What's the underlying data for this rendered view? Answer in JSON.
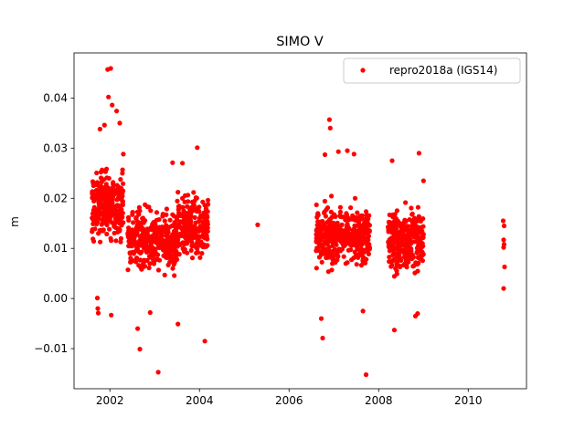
{
  "chart_data": {
    "type": "scatter",
    "title": "SIMO V",
    "xlabel": "",
    "ylabel": "m",
    "xlim": [
      2001.2,
      2011.3
    ],
    "ylim": [
      -0.018,
      0.049
    ],
    "x_ticks": [
      2002,
      2004,
      2006,
      2008,
      2010
    ],
    "x_tick_labels": [
      "2002",
      "2004",
      "2006",
      "2008",
      "2010"
    ],
    "y_ticks": [
      -0.01,
      0.0,
      0.01,
      0.02,
      0.03,
      0.04
    ],
    "y_tick_labels": [
      "−0.01",
      "0.00",
      "0.01",
      "0.02",
      "0.03",
      "0.04"
    ],
    "grid": false,
    "legend_position": "top-right",
    "series": [
      {
        "name": "repro2018a (IGS14)",
        "color": "#ff0000",
        "marker": "circle",
        "clusters": [
          {
            "x_range": [
              2001.6,
              2002.3
            ],
            "y_center": 0.0185,
            "y_spread": 0.0075,
            "count": 280
          },
          {
            "x_range": [
              2002.4,
              2003.5
            ],
            "y_center": 0.0115,
            "y_spread": 0.0065,
            "count": 380
          },
          {
            "x_range": [
              2003.5,
              2004.2
            ],
            "y_center": 0.0145,
            "y_spread": 0.0065,
            "count": 220
          },
          {
            "x_range": [
              2006.6,
              2007.8
            ],
            "y_center": 0.0125,
            "y_spread": 0.0065,
            "count": 400
          },
          {
            "x_range": [
              2008.2,
              2009.0
            ],
            "y_center": 0.0115,
            "y_spread": 0.0065,
            "count": 330
          }
        ],
        "points": [
          [
            2001.95,
            0.0457
          ],
          [
            2002.02,
            0.0459
          ],
          [
            2001.97,
            0.0402
          ],
          [
            2002.05,
            0.0386
          ],
          [
            2002.15,
            0.0374
          ],
          [
            2002.22,
            0.035
          ],
          [
            2001.78,
            0.0338
          ],
          [
            2001.88,
            0.0346
          ],
          [
            2002.3,
            0.0288
          ],
          [
            2001.72,
            0.0001
          ],
          [
            2001.73,
            -0.002
          ],
          [
            2001.74,
            -0.0029
          ],
          [
            2002.03,
            -0.0033
          ],
          [
            2002.62,
            -0.006
          ],
          [
            2002.67,
            -0.0101
          ],
          [
            2003.08,
            -0.0147
          ],
          [
            2003.52,
            -0.0051
          ],
          [
            2002.9,
            -0.0028
          ],
          [
            2003.62,
            0.027
          ],
          [
            2003.4,
            0.0271
          ],
          [
            2003.95,
            0.0301
          ],
          [
            2004.12,
            -0.0085
          ],
          [
            2005.3,
            0.0147
          ],
          [
            2006.8,
            0.0287
          ],
          [
            2006.9,
            0.0357
          ],
          [
            2006.92,
            0.034
          ],
          [
            2006.75,
            -0.0079
          ],
          [
            2007.1,
            0.0293
          ],
          [
            2007.3,
            0.0295
          ],
          [
            2007.45,
            0.0288
          ],
          [
            2007.72,
            -0.0152
          ],
          [
            2007.65,
            -0.0025
          ],
          [
            2006.72,
            -0.004
          ],
          [
            2008.3,
            0.0275
          ],
          [
            2008.35,
            -0.0063
          ],
          [
            2008.9,
            0.029
          ],
          [
            2008.82,
            -0.0035
          ],
          [
            2008.87,
            -0.003
          ],
          [
            2009.0,
            0.0235
          ],
          [
            2010.78,
            0.0155
          ],
          [
            2010.8,
            0.0145
          ],
          [
            2010.79,
            0.0117
          ],
          [
            2010.8,
            0.0108
          ],
          [
            2010.79,
            0.0102
          ],
          [
            2010.81,
            0.0063
          ],
          [
            2010.79,
            0.002
          ]
        ]
      }
    ]
  }
}
